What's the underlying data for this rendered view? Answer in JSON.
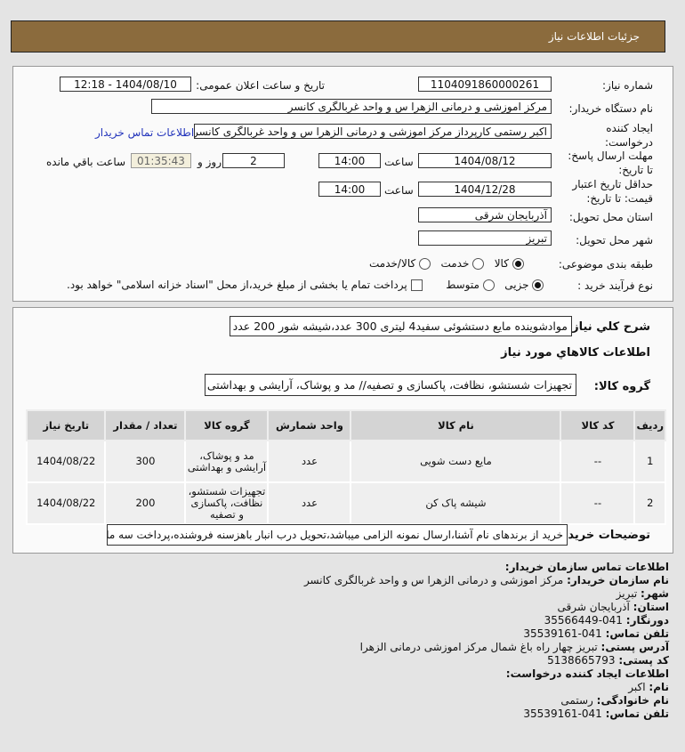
{
  "header": {
    "title": "جزئیات اطلاعات نیاز"
  },
  "form": {
    "need_number_label": "شماره نیاز:",
    "need_number": "1104091860000261",
    "announce_label": "تاریخ و ساعت اعلان عمومی:",
    "announce_value": "1404/08/10 - 12:18",
    "buyer_label": "نام دستگاه خریدار:",
    "buyer_value": "مرکز اموزشی و درمانی الزهرا س  و واحد غربالگری کانسر",
    "creator_label_1": "ایجاد کننده",
    "creator_label_2": "درخواست:",
    "creator_value": "اکبر رستمی کارپرداز مرکز اموزشی و درمانی الزهرا س  و واحد غربالگری کانسر",
    "buyer_contact_link": "اطلاعات تماس خریدار",
    "deadline_label_1": "مهلت ارسال پاسخ:",
    "deadline_label_2": "تا تاریخ:",
    "deadline_date": "1404/08/12",
    "time_label": "ساعت",
    "deadline_time": "14:00",
    "days": "2",
    "days_label": "روز و",
    "remaining": "01:35:43",
    "remaining_label": "ساعت باقي مانده",
    "validity_label_1": "حداقل تاریخ اعتبار",
    "validity_label_2": "قیمت: تا تاریخ:",
    "validity_date": "1404/12/28",
    "validity_time": "14:00",
    "province_label": "استان محل تحویل:",
    "province": "آذربایجان شرقی",
    "city_label": "شهر محل تحویل:",
    "city": "تبریز",
    "category_label": "طبقه بندی موضوعی:",
    "category_options": [
      "کالا",
      "خدمت",
      "کالا/خدمت"
    ],
    "category_selected": "کالا",
    "process_label": "نوع فرآیند خرید :",
    "process_options": [
      "جزیی",
      "متوسط"
    ],
    "process_selected": "جزیی",
    "payment_note": "پرداخت تمام یا بخشی از مبلغ خرید،از محل \"اسناد خزانه اسلامی\" خواهد بود."
  },
  "need": {
    "desc_label": "شرح کلي نیاز:",
    "desc": "موادشوینده مایع دستشوئی سفید4 لیتری 300 عدد،شیشه شور 200 عدد",
    "goods_title": "اطلاعات کالاهاي مورد نیاز",
    "group_label": "گروه کالا:",
    "group": "تجهیزات شستشو، نظافت، پاکسازی و تصفیه// مد و پوشاک، آرایشی و بهداشتی",
    "columns": [
      "ردیف",
      "کد کالا",
      "نام کالا",
      "واحد شمارش",
      "گروه کالا",
      "تعداد / مقدار",
      "تاریخ نیاز"
    ],
    "rows": [
      [
        "1",
        "--",
        "مایع دست شویی",
        "عدد",
        "مد و پوشاک، آرایشی و بهداشتی",
        "300",
        "1404/08/22"
      ],
      [
        "2",
        "--",
        "شیشه پاک کن",
        "عدد",
        "تجهیزات شستشو، نظافت، پاکسازی و تصفیه",
        "200",
        "1404/08/22"
      ]
    ],
    "notes_label": "توضیحات خریدار:",
    "notes": "خرید از برندهای نام آشنا،ارسال نمونه الزامی میباشد،تحویل درب انبار باهزسنه فروشنده،پرداخت سه ماهه"
  },
  "contact": {
    "title": "اطلاعات تماس سازمان خریدار:",
    "org_label": "نام سازمان خریدار:",
    "org": "مرکز اموزشی و درمانی الزهرا س و واحد غربالگری کانسر",
    "city_label": "شهر:",
    "city": "تبریز",
    "province_label": "استان:",
    "province": "آذربایجان شرقی",
    "fax_label": "دورنگار:",
    "fax": "041-35566449",
    "phone_label": "تلفن تماس:",
    "phone": "041-35539161",
    "address_label": "آدرس پستی:",
    "address": "تبریز چهار راه باغ شمال مرکز اموزشی درمانی الزهرا",
    "postal_label": "کد پستی:",
    "postal": "5138665793",
    "creator_title": "اطلاعات ایجاد کننده درخواست:",
    "name_label": "نام:",
    "name": "اکبر",
    "family_label": "نام خانوادگی:",
    "family": "رستمی",
    "creator_phone_label": "تلفن تماس:",
    "creator_phone": "041-35539161"
  }
}
